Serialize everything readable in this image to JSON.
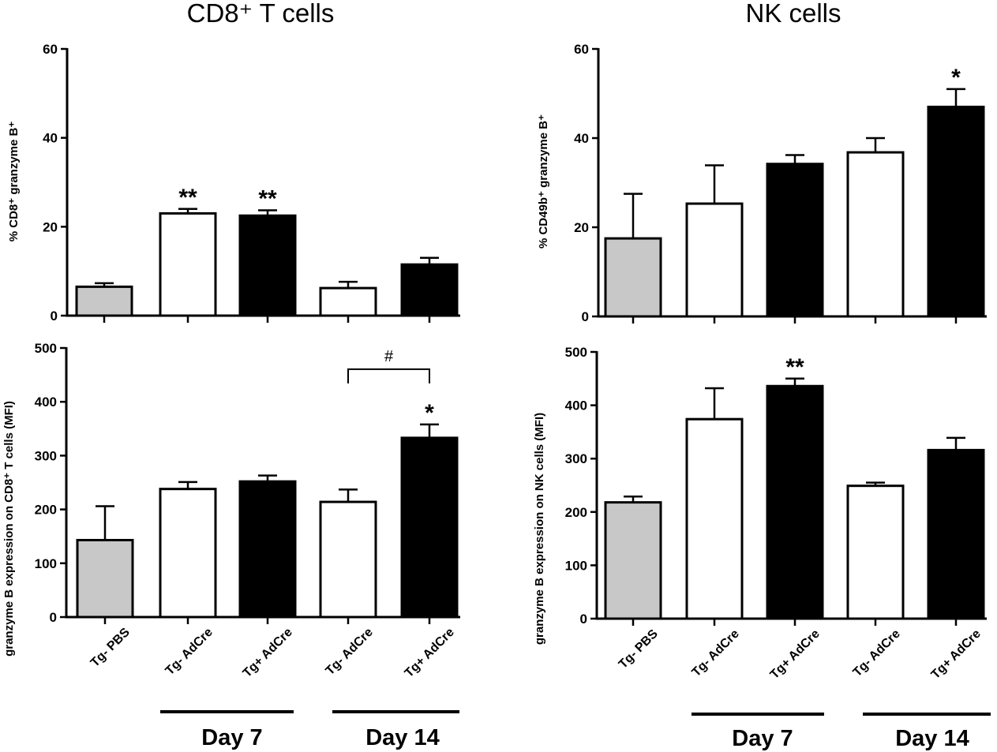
{
  "titles": {
    "left": "CD8⁺ T cells",
    "right": "NK cells"
  },
  "day_labels": {
    "day7": "Day 7",
    "day14": "Day 14"
  },
  "bar_styles": [
    "#c8c8c8",
    "#ffffff",
    "#000000",
    "#ffffff",
    "#000000"
  ],
  "chart_data": [
    {
      "type": "bar",
      "panel": "top-left",
      "categories": [
        "Tg- PBS",
        "Tg- AdCre",
        "Tg+ AdCre",
        "Tg- AdCre",
        "Tg+ AdCre"
      ],
      "values": [
        6.5,
        23,
        22.5,
        6.2,
        11.5
      ],
      "errors": [
        0.8,
        1.0,
        1.2,
        1.4,
        1.5
      ],
      "annotations": [
        "",
        "**",
        "**",
        "",
        ""
      ],
      "ylabel": "% CD8⁺ granzyme B⁺",
      "ylim": [
        0,
        60
      ],
      "yticks": [
        0,
        20,
        40,
        60
      ]
    },
    {
      "type": "bar",
      "panel": "top-right",
      "categories": [
        "Tg- PBS",
        "Tg- AdCre",
        "Tg+ AdCre",
        "Tg- AdCre",
        "Tg+ AdCre"
      ],
      "values": [
        17.5,
        25.3,
        34.2,
        36.8,
        47
      ],
      "errors": [
        10,
        8.6,
        2.0,
        3.2,
        4.0
      ],
      "annotations": [
        "",
        "",
        "",
        "",
        "*"
      ],
      "ylabel": "% CD49b⁺ granzyme B⁺",
      "ylim": [
        0,
        60
      ],
      "yticks": [
        0,
        20,
        40,
        60
      ]
    },
    {
      "type": "bar",
      "panel": "bottom-left",
      "categories": [
        "Tg- PBS",
        "Tg- AdCre",
        "Tg+ AdCre",
        "Tg- AdCre",
        "Tg+ AdCre"
      ],
      "values": [
        143,
        238,
        252,
        214,
        333
      ],
      "errors": [
        63,
        13,
        11,
        23,
        25
      ],
      "annotations": [
        "",
        "",
        "",
        "",
        "*"
      ],
      "bracket": {
        "from": 3,
        "to": 4,
        "label": "#"
      },
      "ylabel": "granzyme B expression on CD8⁺ T cells (MFI)",
      "ylim": [
        0,
        500
      ],
      "yticks": [
        0,
        100,
        200,
        300,
        400,
        500
      ]
    },
    {
      "type": "bar",
      "panel": "bottom-right",
      "categories": [
        "Tg- PBS",
        "Tg- AdCre",
        "Tg+ AdCre",
        "Tg- AdCre",
        "Tg+ AdCre"
      ],
      "values": [
        218,
        374,
        436,
        249,
        316
      ],
      "errors": [
        11,
        58,
        14,
        6,
        23
      ],
      "annotations": [
        "",
        "",
        "**",
        "",
        ""
      ],
      "ylabel": "granzyme B expression on NK cells (MFI)",
      "ylim": [
        0,
        500
      ],
      "yticks": [
        0,
        100,
        200,
        300,
        400,
        500
      ]
    }
  ]
}
